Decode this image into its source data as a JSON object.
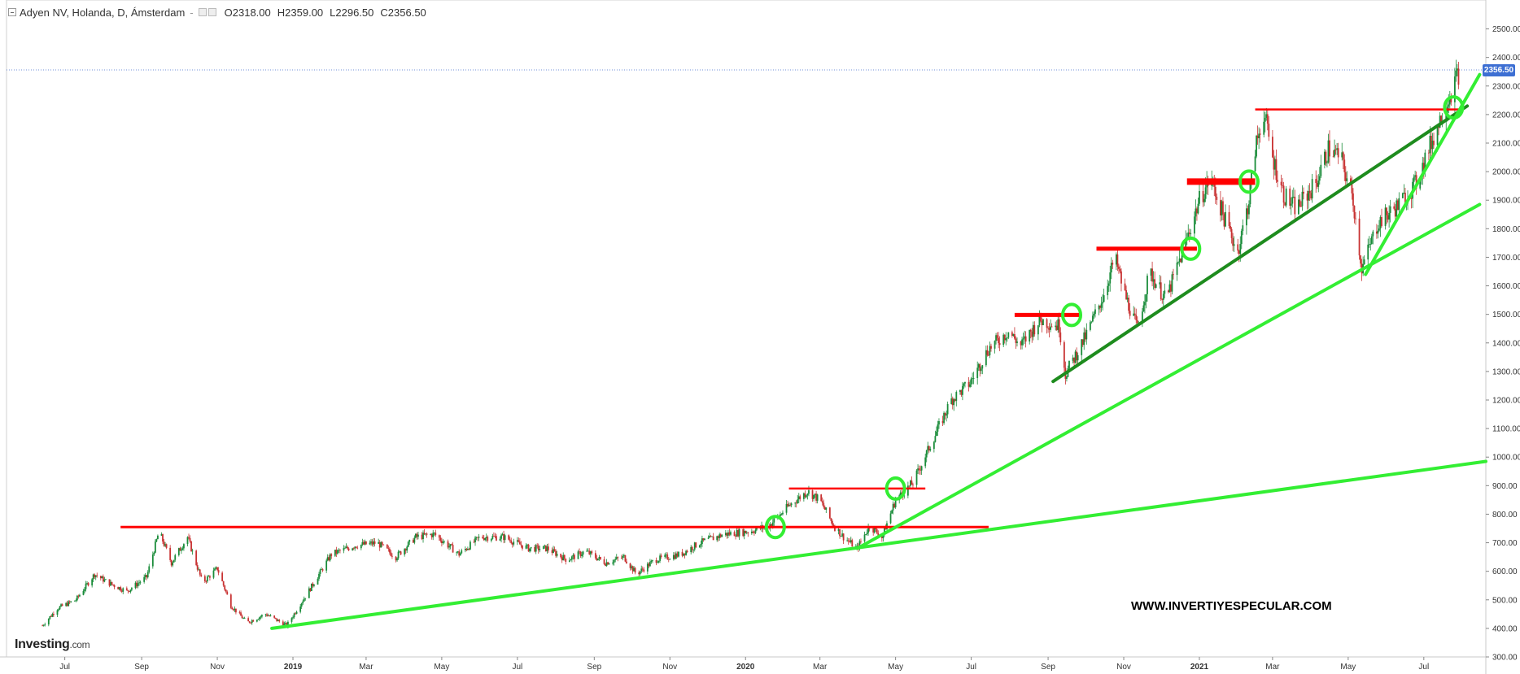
{
  "header": {
    "instrument": "Adyen NV, Holanda, D, Ámsterdam",
    "open_label": "O",
    "open": "2318.00",
    "high_label": "H",
    "high": "2359.00",
    "low_label": "L",
    "low": "2296.50",
    "close_label": "C",
    "close": "2356.50"
  },
  "branding": {
    "logo": "Investing",
    "logo_domain": ".com",
    "watermark": "WWW.INVERTIYESPECULAR.COM"
  },
  "last_price_label": "2356.50",
  "colors": {
    "up": "#1a8c3a",
    "down": "#c83232",
    "resistance": "#ff0000",
    "trend_light": "#33ee33",
    "trend_dark": "#1e8c1e",
    "circle": "#33ee33",
    "price_tag": "#3d6fd3",
    "price_line": "#6f8fd8"
  },
  "chart_data": {
    "type": "candlestick",
    "title": "Adyen NV, Holanda, D, Ámsterdam",
    "x_ticks": [
      "Jul",
      "Sep",
      "Nov",
      "2019",
      "Mar",
      "May",
      "Jul",
      "Sep",
      "Nov",
      "2020",
      "Mar",
      "May",
      "Jul",
      "Sep",
      "Nov",
      "2021",
      "Mar",
      "May",
      "Jul"
    ],
    "x_tick_dates": [
      "2018-07-01",
      "2018-09-01",
      "2018-11-01",
      "2019-01-01",
      "2019-03-01",
      "2019-05-01",
      "2019-07-01",
      "2019-09-01",
      "2019-11-01",
      "2020-01-01",
      "2020-03-01",
      "2020-05-01",
      "2020-07-01",
      "2020-09-01",
      "2020-11-01",
      "2021-01-01",
      "2021-03-01",
      "2021-05-01",
      "2021-07-01"
    ],
    "xlim": [
      "2018-05-15",
      "2021-08-20"
    ],
    "ylim": [
      300,
      2550
    ],
    "y_ticks": [
      300,
      400,
      500,
      600,
      700,
      800,
      900,
      1000,
      1100,
      1200,
      1300,
      1400,
      1500,
      1600,
      1700,
      1800,
      1900,
      2000,
      2100,
      2200,
      2300,
      2400,
      2500
    ],
    "y_tick_labels": [
      "300.00",
      "400.00",
      "500.00",
      "600.00",
      "700.00",
      "800.00",
      "900.00",
      "1000.00",
      "1100.00",
      "1200.00",
      "1300.00",
      "1400.00",
      "1500.00",
      "1600.00",
      "1700.00",
      "1800.00",
      "1900.00",
      "2000.00",
      "2100.00",
      "2200.00",
      "2300.00",
      "2400.00",
      "2500.00"
    ],
    "last_price": 2356.5,
    "price_path": [
      [
        "2018-06-13",
        410
      ],
      [
        "2018-06-25",
        470
      ],
      [
        "2018-07-10",
        500
      ],
      [
        "2018-07-25",
        590
      ],
      [
        "2018-08-05",
        560
      ],
      [
        "2018-08-20",
        530
      ],
      [
        "2018-09-05",
        580
      ],
      [
        "2018-09-15",
        740
      ],
      [
        "2018-09-25",
        630
      ],
      [
        "2018-10-08",
        720
      ],
      [
        "2018-10-20",
        560
      ],
      [
        "2018-11-01",
        610
      ],
      [
        "2018-11-12",
        480
      ],
      [
        "2018-11-25",
        420
      ],
      [
        "2018-12-10",
        450
      ],
      [
        "2018-12-27",
        410
      ],
      [
        "2019-01-15",
        540
      ],
      [
        "2019-02-01",
        660
      ],
      [
        "2019-02-20",
        690
      ],
      [
        "2019-03-10",
        700
      ],
      [
        "2019-03-25",
        650
      ],
      [
        "2019-04-10",
        720
      ],
      [
        "2019-04-25",
        730
      ],
      [
        "2019-05-15",
        660
      ],
      [
        "2019-06-01",
        720
      ],
      [
        "2019-06-20",
        720
      ],
      [
        "2019-07-10",
        680
      ],
      [
        "2019-07-25",
        680
      ],
      [
        "2019-08-10",
        640
      ],
      [
        "2019-08-25",
        670
      ],
      [
        "2019-09-10",
        630
      ],
      [
        "2019-09-25",
        650
      ],
      [
        "2019-10-05",
        590
      ],
      [
        "2019-10-20",
        640
      ],
      [
        "2019-11-10",
        660
      ],
      [
        "2019-11-25",
        700
      ],
      [
        "2019-12-15",
        730
      ],
      [
        "2020-01-05",
        740
      ],
      [
        "2020-01-20",
        760
      ],
      [
        "2020-02-05",
        830
      ],
      [
        "2020-02-20",
        880
      ],
      [
        "2020-03-01",
        850
      ],
      [
        "2020-03-12",
        760
      ],
      [
        "2020-03-20",
        720
      ],
      [
        "2020-03-31",
        680
      ],
      [
        "2020-04-10",
        760
      ],
      [
        "2020-04-20",
        720
      ],
      [
        "2020-05-01",
        850
      ],
      [
        "2020-05-15",
        910
      ],
      [
        "2020-05-31",
        1060
      ],
      [
        "2020-06-15",
        1200
      ],
      [
        "2020-06-30",
        1260
      ],
      [
        "2020-07-15",
        1380
      ],
      [
        "2020-07-31",
        1440
      ],
      [
        "2020-08-10",
        1390
      ],
      [
        "2020-08-25",
        1480
      ],
      [
        "2020-09-10",
        1460
      ],
      [
        "2020-09-15",
        1290
      ],
      [
        "2020-10-01",
        1420
      ],
      [
        "2020-10-15",
        1560
      ],
      [
        "2020-10-25",
        1700
      ],
      [
        "2020-11-01",
        1580
      ],
      [
        "2020-11-12",
        1450
      ],
      [
        "2020-11-22",
        1650
      ],
      [
        "2020-12-05",
        1550
      ],
      [
        "2020-12-20",
        1740
      ],
      [
        "2021-01-01",
        1900
      ],
      [
        "2021-01-10",
        1980
      ],
      [
        "2021-01-20",
        1850
      ],
      [
        "2021-02-01",
        1720
      ],
      [
        "2021-02-10",
        1900
      ],
      [
        "2021-02-15",
        2080
      ],
      [
        "2021-02-22",
        2210
      ],
      [
        "2021-03-01",
        2050
      ],
      [
        "2021-03-10",
        1920
      ],
      [
        "2021-03-20",
        1870
      ],
      [
        "2021-04-05",
        1960
      ],
      [
        "2021-04-15",
        2080
      ],
      [
        "2021-04-25",
        2050
      ],
      [
        "2021-05-05",
        1900
      ],
      [
        "2021-05-12",
        1660
      ],
      [
        "2021-05-25",
        1820
      ],
      [
        "2021-06-10",
        1880
      ],
      [
        "2021-06-25",
        1960
      ],
      [
        "2021-07-05",
        2080
      ],
      [
        "2021-07-20",
        2250
      ],
      [
        "2021-07-30",
        2356.5
      ]
    ],
    "annotations": {
      "resistance_lines": [
        {
          "x1": "2018-08-15",
          "x2": "2020-07-15",
          "y": 755,
          "weight": "medium"
        },
        {
          "x1": "2020-02-05",
          "x2": "2020-05-25",
          "y": 890,
          "weight": "thin"
        },
        {
          "x1": "2020-08-05",
          "x2": "2020-09-28",
          "y": 1498,
          "weight": "thick"
        },
        {
          "x1": "2020-10-10",
          "x2": "2020-12-30",
          "y": 1730,
          "weight": "thick"
        },
        {
          "x1": "2020-12-22",
          "x2": "2021-02-15",
          "y": 1965,
          "weight": "heavy"
        },
        {
          "x1": "2021-02-15",
          "x2": "2021-07-30",
          "y": 2218,
          "weight": "thin"
        }
      ],
      "trend_lines": [
        {
          "x1": "2018-12-15",
          "y1": 400,
          "x2": "2021-08-20",
          "y2": 985,
          "shade": "light"
        },
        {
          "x1": "2020-03-31",
          "y1": 680,
          "x2": "2021-08-15",
          "y2": 1885,
          "shade": "light"
        },
        {
          "x1": "2020-09-05",
          "y1": 1265,
          "x2": "2021-08-05",
          "y2": 2230,
          "shade": "dark"
        },
        {
          "x1": "2021-05-15",
          "y1": 1640,
          "x2": "2021-08-15",
          "y2": 2340,
          "shade": "light"
        }
      ],
      "breakout_circles": [
        {
          "x": "2020-01-25",
          "y": 755
        },
        {
          "x": "2020-05-01",
          "y": 890
        },
        {
          "x": "2020-09-20",
          "y": 1498
        },
        {
          "x": "2020-12-25",
          "y": 1730
        },
        {
          "x": "2021-02-10",
          "y": 1965
        },
        {
          "x": "2021-07-25",
          "y": 2225
        }
      ]
    }
  }
}
